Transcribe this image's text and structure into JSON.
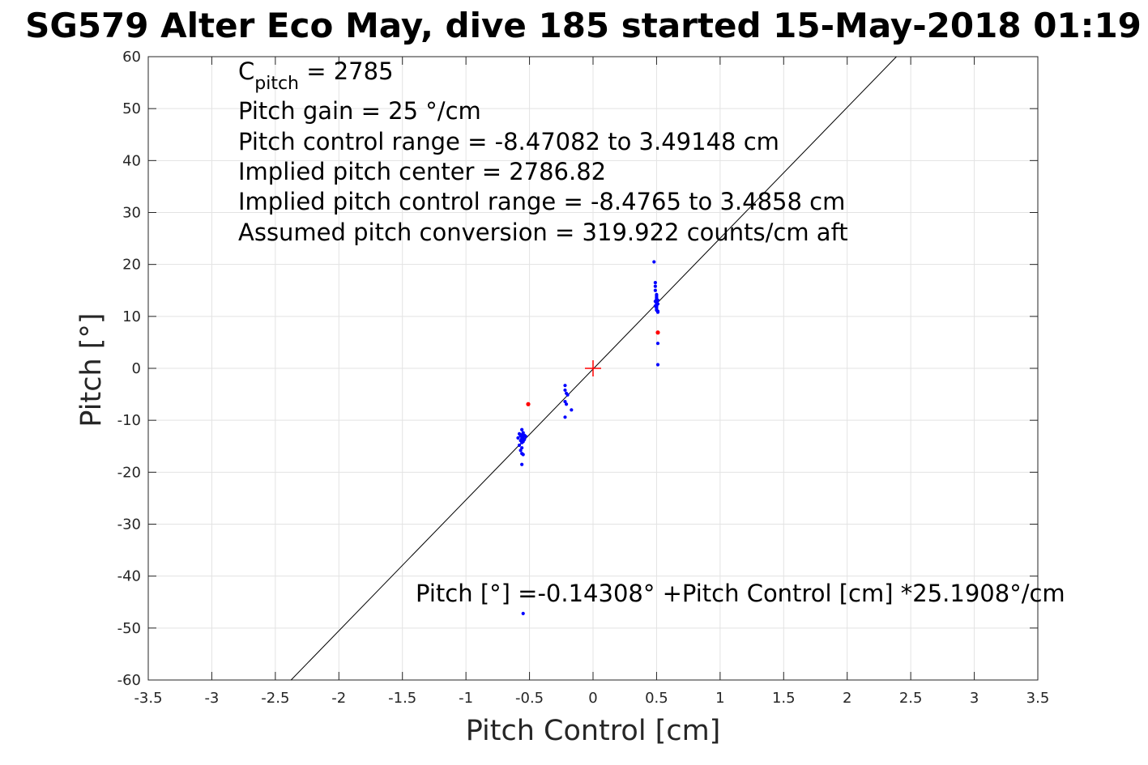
{
  "chart_data": {
    "type": "scatter",
    "title": "SG579 Alter Eco May, dive 185 started 15-May-2018 01:19",
    "xlabel": "Pitch Control [cm]",
    "ylabel": "Pitch [°]",
    "xlim": [
      -3.5,
      3.5
    ],
    "ylim": [
      -60,
      60
    ],
    "xticks": [
      -3.5,
      -3,
      -2.5,
      -2,
      -1.5,
      -1,
      -0.5,
      0,
      0.5,
      1,
      1.5,
      2,
      2.5,
      3,
      3.5
    ],
    "xtick_labels": [
      "-3.5",
      "-3",
      "-2.5",
      "-2",
      "-1.5",
      "-1",
      "-0.5",
      "0",
      "0.5",
      "1",
      "1.5",
      "2",
      "2.5",
      "3",
      "3.5"
    ],
    "yticks": [
      -60,
      -50,
      -40,
      -30,
      -20,
      -10,
      0,
      10,
      20,
      30,
      40,
      50,
      60
    ],
    "ytick_labels": [
      "-60",
      "-50",
      "-40",
      "-30",
      "-20",
      "-10",
      "0",
      "10",
      "20",
      "30",
      "40",
      "50",
      "60"
    ],
    "grid": true,
    "colors": {
      "points": "#0000ff",
      "flagged": "#ff0000",
      "fit": "#000000",
      "center": "#ff0000"
    },
    "fit_line": {
      "intercept": -0.14308,
      "slope": 25.1908
    },
    "center_marker": {
      "x": 0,
      "y": 0
    },
    "series": [
      {
        "points": [
          [
            0.48,
            20.5
          ],
          [
            0.49,
            16.5
          ],
          [
            0.49,
            15.8
          ],
          [
            0.49,
            15.0
          ],
          [
            0.5,
            14.2
          ],
          [
            0.5,
            13.9
          ],
          [
            0.5,
            13.6
          ],
          [
            0.5,
            13.3
          ],
          [
            0.5,
            13.0
          ],
          [
            0.5,
            12.8
          ],
          [
            0.5,
            12.5
          ],
          [
            0.5,
            12.2
          ],
          [
            0.5,
            12.0
          ],
          [
            0.5,
            11.8
          ],
          [
            0.5,
            11.5
          ],
          [
            0.5,
            11.2
          ],
          [
            0.51,
            11.0
          ],
          [
            0.51,
            10.8
          ],
          [
            0.51,
            12.4
          ],
          [
            0.51,
            13.1
          ],
          [
            0.49,
            12.9
          ],
          [
            0.49,
            12.0
          ],
          [
            0.51,
            4.8
          ],
          [
            0.51,
            0.7
          ],
          [
            -0.56,
            -11.8
          ],
          [
            -0.55,
            -12.4
          ],
          [
            -0.56,
            -12.8
          ],
          [
            -0.57,
            -13.0
          ],
          [
            -0.55,
            -13.2
          ],
          [
            -0.56,
            -13.5
          ],
          [
            -0.54,
            -13.7
          ],
          [
            -0.57,
            -13.9
          ],
          [
            -0.55,
            -14.1
          ],
          [
            -0.56,
            -14.3
          ],
          [
            -0.54,
            -12.9
          ],
          [
            -0.58,
            -14.8
          ],
          [
            -0.56,
            -15.3
          ],
          [
            -0.57,
            -15.8
          ],
          [
            -0.56,
            -16.4
          ],
          [
            -0.55,
            -16.6
          ],
          [
            -0.58,
            -12.6
          ],
          [
            -0.59,
            -13.4
          ],
          [
            -0.53,
            -13.1
          ],
          [
            -0.56,
            -18.5
          ],
          [
            -0.55,
            -47.2
          ],
          [
            -0.22,
            -3.3
          ],
          [
            -0.22,
            -4.2
          ],
          [
            -0.21,
            -4.8
          ],
          [
            -0.22,
            -6.4
          ],
          [
            -0.21,
            -6.9
          ],
          [
            -0.22,
            -9.4
          ],
          [
            -0.17,
            -8.0
          ],
          [
            -0.2,
            -5.1
          ]
        ]
      },
      {
        "flagged": true,
        "points": [
          [
            0.51,
            6.9
          ],
          [
            -0.51,
            -6.9
          ]
        ]
      }
    ],
    "annotations": {
      "cpitch_main": "C",
      "cpitch_sub": "pitch",
      "cpitch_value": " = 2785",
      "lines": [
        "Pitch gain = 25 °/cm",
        "Pitch control range = -8.47082 to 3.49148 cm",
        "Implied pitch center = 2786.82",
        "Implied pitch control range = -8.4765 to 3.4858 cm",
        "Assumed pitch conversion = 319.922 counts/cm aft"
      ],
      "fit_equation": "Pitch [°] =-0.14308° +Pitch Control [cm] *25.1908°/cm"
    }
  }
}
